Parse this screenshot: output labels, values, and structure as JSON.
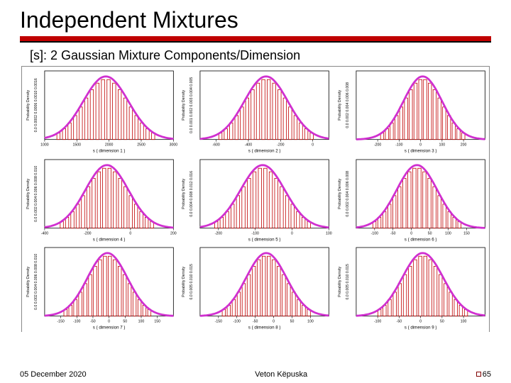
{
  "slide": {
    "title": "Independent Mixtures",
    "subtitle": "[s]: 2 Gaussian Mixture Components/Dimension",
    "rule_color_top": "#c00000",
    "rule_color_bottom": "#000000"
  },
  "footer": {
    "date": "05 December 2020",
    "author": "Veton Këpuska",
    "page": "65"
  },
  "chart": {
    "grid": {
      "cols": 3,
      "rows": 3
    },
    "panel_bg": "#ffffff",
    "curve_color": "#d030d0",
    "curve_width": 2.8,
    "histogram_outline": "#c00000",
    "histogram_fill": "none",
    "axis_color": "#000000",
    "tick_fontsize": 5.2,
    "ylabel_fontsize": 5.2,
    "xlabel_fontsize": 6.2,
    "ylabel_text": "Probability Density",
    "panels": [
      {
        "dim": 1,
        "xlim": [
          1000,
          3000
        ],
        "xticks": [
          1000,
          1500,
          2000,
          2500,
          3000
        ],
        "mu": 1950,
        "sigma": 350,
        "ylabel_ticks": "0.0  0.0002 0.0006 0.0010  0.0016"
      },
      {
        "dim": 2,
        "xlim": [
          -700,
          100
        ],
        "xticks": [
          -600,
          -400,
          -200,
          0
        ],
        "mu": -290,
        "sigma": 135,
        "ylabel_ticks": "0.0  0.001 0.002 0.003 0.004 0.005"
      },
      {
        "dim": 3,
        "xlim": [
          -300,
          300
        ],
        "xticks": [
          -200,
          -100,
          0,
          100,
          200
        ],
        "mu": 10,
        "sigma": 90,
        "ylabel_ticks": "0.0 0.002 0.004 0.006 0.008"
      },
      {
        "dim": 4,
        "xlim": [
          -400,
          200
        ],
        "xticks": [
          -400,
          -200,
          0,
          200
        ],
        "mu": -110,
        "sigma": 100,
        "ylabel_ticks": "0.0  0.002 0.004 0.006 0.008 0.010"
      },
      {
        "dim": 5,
        "xlim": [
          -250,
          100
        ],
        "xticks": [
          -200,
          -100,
          0,
          100
        ],
        "mu": -80,
        "sigma": 60,
        "ylabel_ticks": "0.0  0.004 0.008 0.012 0.016"
      },
      {
        "dim": 6,
        "xlim": [
          -150,
          200
        ],
        "xticks": [
          -100,
          -50,
          0,
          50,
          100,
          150
        ],
        "mu": 15,
        "sigma": 55,
        "ylabel_ticks": "0.0  0.002 0.004 0.006 0.008"
      },
      {
        "dim": 7,
        "xlim": [
          -200,
          200
        ],
        "xticks": [
          -150,
          -100,
          -50,
          0,
          50,
          100,
          150
        ],
        "mu": -5,
        "sigma": 62,
        "ylabel_ticks": "0.0 0.002 0.004 0.006 0.008 0.010"
      },
      {
        "dim": 8,
        "xlim": [
          -200,
          150
        ],
        "xticks": [
          -150,
          -100,
          -50,
          0,
          50,
          100
        ],
        "mu": -20,
        "sigma": 55,
        "ylabel_ticks": "0.0  0.005  0.010  0.015"
      },
      {
        "dim": 9,
        "xlim": [
          -150,
          150
        ],
        "xticks": [
          -100,
          -50,
          0,
          50,
          100
        ],
        "mu": 5,
        "sigma": 48,
        "ylabel_ticks": "0.0  0.005  0.010  0.015"
      }
    ]
  }
}
